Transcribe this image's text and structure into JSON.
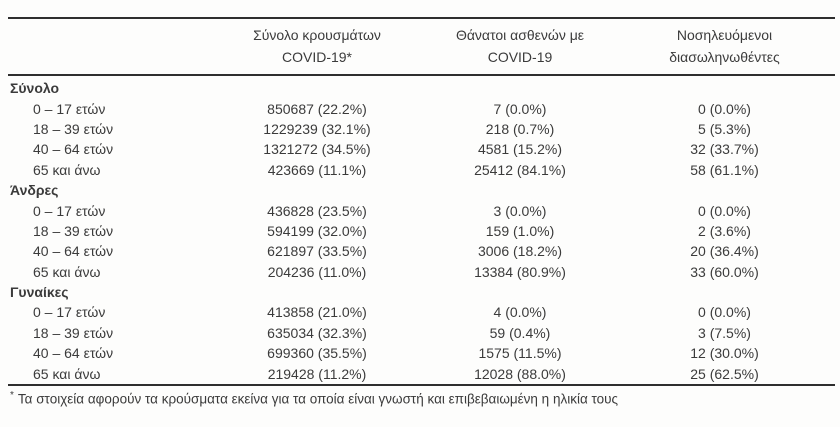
{
  "table": {
    "columns": [
      {
        "line1": "Σύνολο κρουσμάτων",
        "line2": "COVID-19*"
      },
      {
        "line1": "Θάνατοι ασθενών με",
        "line2": "COVID-19"
      },
      {
        "line1": "Νοσηλευόμενοι",
        "line2": "διασωληνωθέντες"
      }
    ],
    "sections": [
      {
        "title": "Σύνολο",
        "rows": [
          {
            "label": "0 – 17 ετών",
            "cases": "850687 (22.2%)",
            "deaths": "7 (0.0%)",
            "intubated": "0 (0.0%)"
          },
          {
            "label": "18 – 39 ετών",
            "cases": "1229239 (32.1%)",
            "deaths": "218 (0.7%)",
            "intubated": "5 (5.3%)"
          },
          {
            "label": "40 – 64 ετών",
            "cases": "1321272 (34.5%)",
            "deaths": "4581 (15.2%)",
            "intubated": "32 (33.7%)"
          },
          {
            "label": "65 και άνω",
            "cases": "423669 (11.1%)",
            "deaths": "25412 (84.1%)",
            "intubated": "58 (61.1%)"
          }
        ]
      },
      {
        "title": "Άνδρες",
        "rows": [
          {
            "label": "0 – 17 ετών",
            "cases": "436828 (23.5%)",
            "deaths": "3 (0.0%)",
            "intubated": "0 (0.0%)"
          },
          {
            "label": "18 – 39 ετών",
            "cases": "594199 (32.0%)",
            "deaths": "159 (1.0%)",
            "intubated": "2 (3.6%)"
          },
          {
            "label": "40 – 64 ετών",
            "cases": "621897 (33.5%)",
            "deaths": "3006 (18.2%)",
            "intubated": "20 (36.4%)"
          },
          {
            "label": "65 και άνω",
            "cases": "204236 (11.0%)",
            "deaths": "13384 (80.9%)",
            "intubated": "33 (60.0%)"
          }
        ]
      },
      {
        "title": "Γυναίκες",
        "rows": [
          {
            "label": "0 – 17 ετών",
            "cases": "413858 (21.0%)",
            "deaths": "4 (0.0%)",
            "intubated": "0 (0.0%)"
          },
          {
            "label": "18 – 39 ετών",
            "cases": "635034 (32.3%)",
            "deaths": "59 (0.4%)",
            "intubated": "3 (7.5%)"
          },
          {
            "label": "40 – 64 ετών",
            "cases": "699360 (35.5%)",
            "deaths": "1575 (11.5%)",
            "intubated": "12 (30.0%)"
          },
          {
            "label": "65 και άνω",
            "cases": "219428 (11.2%)",
            "deaths": "12028 (88.0%)",
            "intubated": "25 (62.5%)"
          }
        ]
      }
    ],
    "footnote_marker": "*",
    "footnote_text": "Τα στοιχεία αφορούν τα κρούσματα εκείνα για τα οποία είναι γνωστή και επιβεβαιωμένη η ηλικία τους"
  },
  "colors": {
    "text": "#3b3b3b",
    "rule": "#2e2e2e",
    "background": "#fdfdfc"
  }
}
